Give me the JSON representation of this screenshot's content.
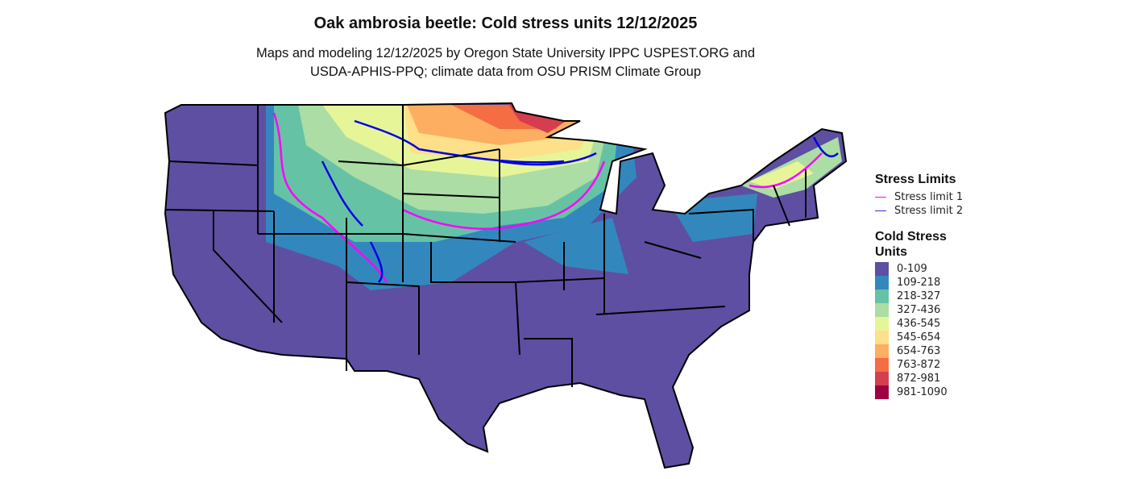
{
  "title": "Oak ambrosia beetle: Cold stress units 12/12/2025",
  "subtitle_line1": "Maps and modeling 12/12/2025 by Oregon State University IPPC USPEST.ORG and",
  "subtitle_line2": "USDA-APHIS-PPQ; climate data from OSU PRISM Climate Group",
  "legend_limits": {
    "title": "Stress Limits",
    "items": [
      {
        "label": "Stress limit 1",
        "color": "#FF00FF"
      },
      {
        "label": "Stress limit 2",
        "color": "#0000E0"
      }
    ]
  },
  "legend_units": {
    "title_line1": "Cold Stress",
    "title_line2": "Units",
    "items": [
      {
        "label": "0-109",
        "color": "#5E4FA2"
      },
      {
        "label": "109-218",
        "color": "#3288BD"
      },
      {
        "label": "218-327",
        "color": "#66C2A5"
      },
      {
        "label": "327-436",
        "color": "#ABDDA4"
      },
      {
        "label": "436-545",
        "color": "#E6F598"
      },
      {
        "label": "545-654",
        "color": "#FEE08B"
      },
      {
        "label": "654-763",
        "color": "#FDAE61"
      },
      {
        "label": "763-872",
        "color": "#F46D43"
      },
      {
        "label": "872-981",
        "color": "#D53E4F"
      },
      {
        "label": "981-1090",
        "color": "#9E0142"
      }
    ]
  }
}
